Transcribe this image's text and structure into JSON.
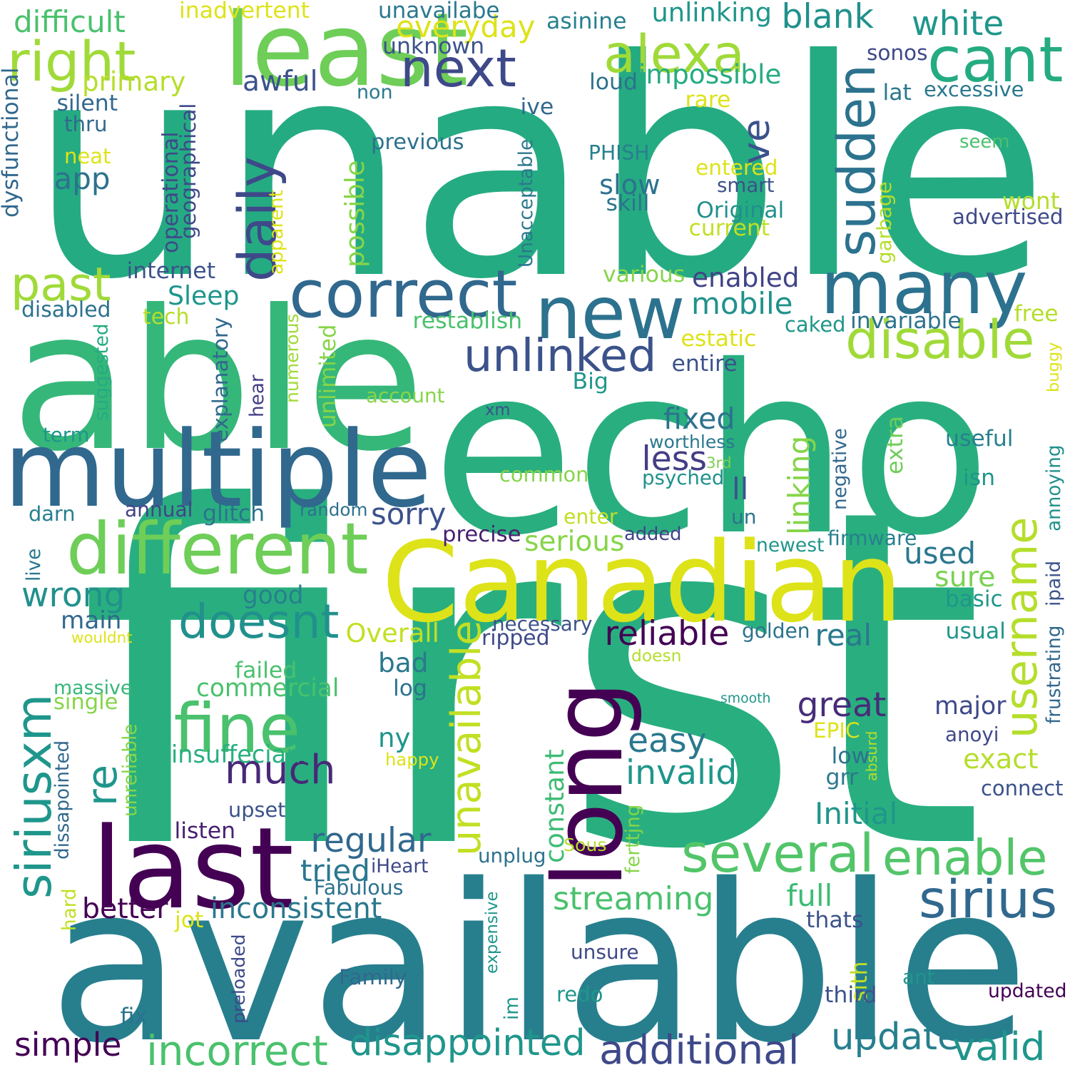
{
  "words": [
    {
      "text": "unable",
      "color": "#25ab82"
    },
    {
      "text": "first",
      "color": "#29af7f"
    },
    {
      "text": "available",
      "color": "#277f8e"
    },
    {
      "text": "echo",
      "color": "#29af7f"
    },
    {
      "text": "able",
      "color": "#35b779"
    },
    {
      "text": "least",
      "color": "#6ece58"
    },
    {
      "text": "Canadian",
      "color": "#dde318"
    },
    {
      "text": "multiple",
      "color": "#31688e"
    },
    {
      "text": "new",
      "color": "#2c728e"
    },
    {
      "text": "many",
      "color": "#2c728e"
    },
    {
      "text": "long",
      "color": "#440154"
    },
    {
      "text": "last",
      "color": "#440154"
    },
    {
      "text": "different",
      "color": "#6ece58"
    },
    {
      "text": "correct",
      "color": "#31688e"
    },
    {
      "text": "unavailable",
      "color": "#c2df23"
    },
    {
      "text": "siriusxm",
      "color": "#1f968b"
    },
    {
      "text": "fine",
      "color": "#4ac16d"
    },
    {
      "text": "doesnt",
      "color": "#21918c"
    },
    {
      "text": "much",
      "color": "#482878"
    },
    {
      "text": "several",
      "color": "#52c569"
    },
    {
      "text": "enable",
      "color": "#52c569"
    },
    {
      "text": "sirius",
      "color": "#31688e"
    },
    {
      "text": "username",
      "color": "#b5de2b"
    },
    {
      "text": "disable",
      "color": "#a0da39"
    },
    {
      "text": "unlinked",
      "color": "#3b528b"
    },
    {
      "text": "sudden",
      "color": "#2c728e"
    },
    {
      "text": "cant",
      "color": "#25ab82"
    },
    {
      "text": "alexa",
      "color": "#a0da39"
    },
    {
      "text": "next",
      "color": "#3e4989"
    },
    {
      "text": "right",
      "color": "#a0da39"
    },
    {
      "text": "daily",
      "color": "#3e4989"
    },
    {
      "text": "ve",
      "color": "#3b528b"
    },
    {
      "text": "re",
      "color": "#1f968b"
    },
    {
      "text": "past",
      "color": "#a0da39"
    },
    {
      "text": "wrong",
      "color": "#21918c"
    },
    {
      "text": "incorrect",
      "color": "#4ac16d"
    },
    {
      "text": "disappointed",
      "color": "#1f968b"
    },
    {
      "text": "additional",
      "color": "#3e4989"
    },
    {
      "text": "update",
      "color": "#277f8e"
    },
    {
      "text": "valid",
      "color": "#1f968b"
    },
    {
      "text": "streaming",
      "color": "#4ac16d"
    },
    {
      "text": "inconsistent",
      "color": "#2a788e"
    },
    {
      "text": "regular",
      "color": "#31688e"
    },
    {
      "text": "great",
      "color": "#472c7a"
    },
    {
      "text": "invalid",
      "color": "#1f968b"
    },
    {
      "text": "reliable",
      "color": "#440154"
    },
    {
      "text": "fixed",
      "color": "#2c728e"
    },
    {
      "text": "less",
      "color": "#433e85"
    },
    {
      "text": "mobile",
      "color": "#21918c"
    },
    {
      "text": "enabled",
      "color": "#414487"
    },
    {
      "text": "blank",
      "color": "#21918c"
    },
    {
      "text": "white",
      "color": "#1f968b"
    },
    {
      "text": "everyday",
      "color": "#dde318"
    },
    {
      "text": "impossible",
      "color": "#25ab82"
    },
    {
      "text": "unlinking",
      "color": "#1f968b"
    },
    {
      "text": "possible",
      "color": "#86d549"
    },
    {
      "text": "constant",
      "color": "#3dbc74"
    },
    {
      "text": "simple",
      "color": "#440154"
    },
    {
      "text": "commercial",
      "color": "#4ac16d"
    },
    {
      "text": "easy",
      "color": "#2a788e"
    },
    {
      "text": "Initial",
      "color": "#1f968b"
    },
    {
      "text": "used",
      "color": "#2a788e"
    },
    {
      "text": "serious",
      "color": "#86d549"
    },
    {
      "text": "real",
      "color": "#2a788e"
    },
    {
      "text": "tried",
      "color": "#2a788e"
    },
    {
      "text": "exact",
      "color": "#b5de2b"
    },
    {
      "text": "major",
      "color": "#3e4989"
    },
    {
      "text": "sure",
      "color": "#7ad151"
    },
    {
      "text": "common",
      "color": "#86d549"
    },
    {
      "text": "good",
      "color": "#27808e"
    },
    {
      "text": "app",
      "color": "#2c728e"
    },
    {
      "text": "main",
      "color": "#31688e"
    },
    {
      "text": "awful",
      "color": "#3b528b"
    },
    {
      "text": "primary",
      "color": "#b5de2b"
    },
    {
      "text": "difficult",
      "color": "#4ac16d"
    },
    {
      "text": "Sleep",
      "color": "#1f968b"
    },
    {
      "text": "bad",
      "color": "#2a788e"
    },
    {
      "text": "better",
      "color": "#440154"
    },
    {
      "text": "full",
      "color": "#3dbc74"
    },
    {
      "text": "sorry",
      "color": "#3b528b"
    },
    {
      "text": "Overall",
      "color": "#c2df23"
    },
    {
      "text": "ll",
      "color": "#3b528b"
    },
    {
      "text": "extra",
      "color": "#6ece58"
    },
    {
      "text": "linking",
      "color": "#86d549"
    },
    {
      "text": "ny",
      "color": "#1f968b"
    },
    {
      "text": "unlimited",
      "color": "#86d549"
    },
    {
      "text": "insuffeciant",
      "color": "#29af7f"
    },
    {
      "text": "inadvertent",
      "color": "#dde318"
    },
    {
      "text": "unavailabe",
      "color": "#2a788e"
    },
    {
      "text": "unknown",
      "color": "#3b528b"
    },
    {
      "text": "asinine",
      "color": "#27808e"
    },
    {
      "text": "sonos",
      "color": "#3e4989"
    },
    {
      "text": "non",
      "color": "#2a788e"
    },
    {
      "text": "loud",
      "color": "#2c728e"
    },
    {
      "text": "lat",
      "color": "#2a788e"
    },
    {
      "text": "excessive",
      "color": "#2a788e"
    },
    {
      "text": "ive",
      "color": "#31688e"
    },
    {
      "text": "rare",
      "color": "#dde318"
    },
    {
      "text": "silent",
      "color": "#31688e"
    },
    {
      "text": "thru",
      "color": "#31688e"
    },
    {
      "text": "previous",
      "color": "#2c728e"
    },
    {
      "text": "seem",
      "color": "#4ac16d"
    },
    {
      "text": "neat",
      "color": "#dde318"
    },
    {
      "text": "PHISH",
      "color": "#27808e"
    },
    {
      "text": "entered",
      "color": "#dde318"
    },
    {
      "text": "slow",
      "color": "#2c728e"
    },
    {
      "text": "skill",
      "color": "#2c728e"
    },
    {
      "text": "smart",
      "color": "#3b528b"
    },
    {
      "text": "Original",
      "color": "#21918c"
    },
    {
      "text": "wont",
      "color": "#b5de2b"
    },
    {
      "text": "advertised",
      "color": "#3e4989"
    },
    {
      "text": "current",
      "color": "#c2df23"
    },
    {
      "text": "dysfunctional",
      "color": "#31688e"
    },
    {
      "text": "operational",
      "color": "#3e4989"
    },
    {
      "text": "geographical",
      "color": "#3e4989"
    },
    {
      "text": "apparent",
      "color": "#dde318"
    },
    {
      "text": "Unacceptable",
      "color": "#2a788e"
    },
    {
      "text": "garbage",
      "color": "#b5de2b"
    },
    {
      "text": "internet",
      "color": "#3b528b"
    },
    {
      "text": "various",
      "color": "#86d549"
    },
    {
      "text": "disabled",
      "color": "#2c728e"
    },
    {
      "text": "tech",
      "color": "#b5de2b"
    },
    {
      "text": "restablish",
      "color": "#4ac16d"
    },
    {
      "text": "caked",
      "color": "#1f968b"
    },
    {
      "text": "invariable",
      "color": "#2c728e"
    },
    {
      "text": "free",
      "color": "#b5de2b"
    },
    {
      "text": "estatic",
      "color": "#dde318"
    },
    {
      "text": "buggy",
      "color": "#dde318"
    },
    {
      "text": "entire",
      "color": "#3b528b"
    },
    {
      "text": "suggested",
      "color": "#25ab82"
    },
    {
      "text": "explanatory",
      "color": "#31688e"
    },
    {
      "text": "hear",
      "color": "#433e85"
    },
    {
      "text": "numerous",
      "color": "#a0da39"
    },
    {
      "text": "Big",
      "color": "#1f968b"
    },
    {
      "text": "account",
      "color": "#86d549"
    },
    {
      "text": "xm",
      "color": "#3b528b"
    },
    {
      "text": "term",
      "color": "#1f968b"
    },
    {
      "text": "worthless",
      "color": "#2a788e"
    },
    {
      "text": "3rd",
      "color": "#7ad151"
    },
    {
      "text": "useful",
      "color": "#27808e"
    },
    {
      "text": "negative",
      "color": "#31688e"
    },
    {
      "text": "psyched",
      "color": "#21918c"
    },
    {
      "text": "isn",
      "color": "#1f968b"
    },
    {
      "text": "annoying",
      "color": "#21918c"
    },
    {
      "text": "darn",
      "color": "#27808e"
    },
    {
      "text": "annual",
      "color": "#414487"
    },
    {
      "text": "glitch",
      "color": "#2c728e"
    },
    {
      "text": "random",
      "color": "#2c728e"
    },
    {
      "text": "enter",
      "color": "#c2df23"
    },
    {
      "text": "un",
      "color": "#2c728e"
    },
    {
      "text": "precise",
      "color": "#481f70"
    },
    {
      "text": "added",
      "color": "#414487"
    },
    {
      "text": "live",
      "color": "#2a788e"
    },
    {
      "text": "firmware",
      "color": "#27808e"
    },
    {
      "text": "newest",
      "color": "#1f968b"
    },
    {
      "text": "ipaid",
      "color": "#3b528b"
    },
    {
      "text": "basic",
      "color": "#1f968b"
    },
    {
      "text": "necessary",
      "color": "#3b528b"
    },
    {
      "text": "ripped",
      "color": "#3e4989"
    },
    {
      "text": "golden",
      "color": "#2c728e"
    },
    {
      "text": "usual",
      "color": "#1f968b"
    },
    {
      "text": "wouldnt",
      "color": "#dde318"
    },
    {
      "text": "doesn",
      "color": "#b5de2b"
    },
    {
      "text": "frustrating",
      "color": "#31688e"
    },
    {
      "text": "failed",
      "color": "#4ac16d"
    },
    {
      "text": "massive",
      "color": "#35b779"
    },
    {
      "text": "single",
      "color": "#86d549"
    },
    {
      "text": "log",
      "color": "#2c728e"
    },
    {
      "text": "smooth",
      "color": "#1f968b"
    },
    {
      "text": "EPIC",
      "color": "#dde318"
    },
    {
      "text": "anoyi",
      "color": "#3e4989"
    },
    {
      "text": "unreliable",
      "color": "#86d549"
    },
    {
      "text": "dissapointed",
      "color": "#31688e"
    },
    {
      "text": "happy",
      "color": "#dde318"
    },
    {
      "text": "low",
      "color": "#2c728e"
    },
    {
      "text": "grr",
      "color": "#2a788e"
    },
    {
      "text": "absurd",
      "color": "#b5de2b"
    },
    {
      "text": "connect",
      "color": "#3b528b"
    },
    {
      "text": "upset",
      "color": "#3b528b"
    },
    {
      "text": "ferttjng",
      "color": "#86d549"
    },
    {
      "text": "listen",
      "color": "#481f70"
    },
    {
      "text": "Sous",
      "color": "#b5de2b"
    },
    {
      "text": "unplug",
      "color": "#2c728e"
    },
    {
      "text": "iHeart",
      "color": "#3e4989"
    },
    {
      "text": "Fabulous",
      "color": "#2c728e"
    },
    {
      "text": "hard",
      "color": "#c2df23"
    },
    {
      "text": "jot",
      "color": "#dde318"
    },
    {
      "text": "expensive",
      "color": "#1f968b"
    },
    {
      "text": "thats",
      "color": "#3b528b"
    },
    {
      "text": "preloaded",
      "color": "#3e4989"
    },
    {
      "text": "unsure",
      "color": "#3e4989"
    },
    {
      "text": "sith",
      "color": "#c2df23"
    },
    {
      "text": "ant",
      "color": "#1f968b"
    },
    {
      "text": "Family",
      "color": "#31688e"
    },
    {
      "text": "im",
      "color": "#1f968b"
    },
    {
      "text": "redo",
      "color": "#1f968b"
    },
    {
      "text": "third",
      "color": "#3b528b"
    },
    {
      "text": "updated",
      "color": "#440154"
    },
    {
      "text": "fix",
      "color": "#2c728e"
    }
  ]
}
